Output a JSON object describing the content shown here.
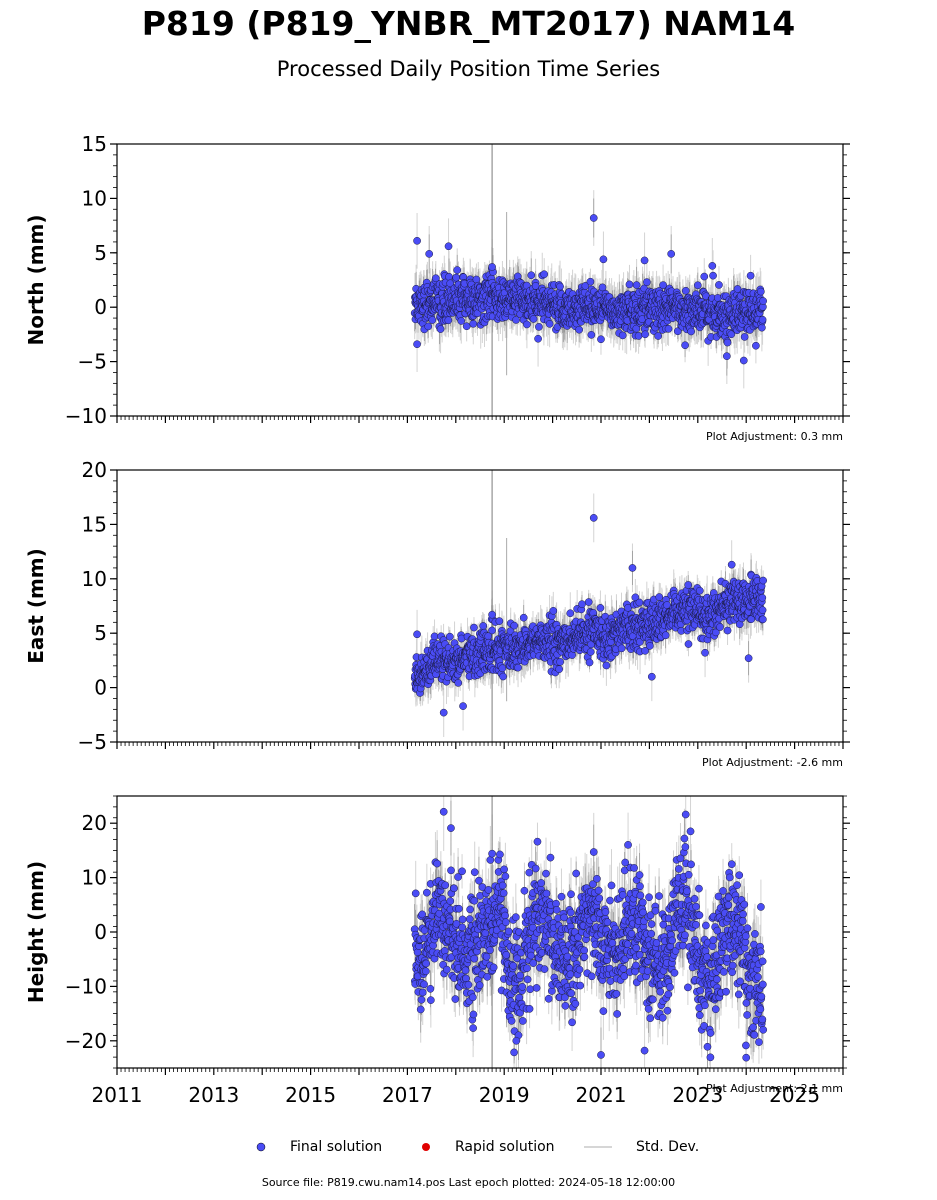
{
  "header": {
    "title": "P819 (P819_YNBR_MT2017) NAM14",
    "subtitle": "Processed Daily Position Time Series"
  },
  "footer": {
    "source": "Source file: P819.cwu.nam14.pos  Last epoch plotted: 2024-05-18 12:00:00"
  },
  "legend": {
    "final_label": "Final solution",
    "rapid_label": "Rapid solution",
    "std_label": "Std. Dev.",
    "final_color": "#4a4cf5",
    "rapid_color": "#e00000",
    "std_color": "#c8c8c8"
  },
  "chart_data": [
    {
      "type": "scatter",
      "ylabel": "North (mm)",
      "adjustment": "Plot Adjustment: 0.3 mm",
      "xlim": [
        2011,
        2026
      ],
      "ylim": [
        -10,
        15
      ],
      "yticks": [
        -10,
        -5,
        0,
        5,
        10,
        15
      ],
      "series": [
        {
          "x": [
            2017.15,
            2017.3,
            2017.5,
            2017.7,
            2017.9,
            2018.1,
            2018.3,
            2018.5,
            2018.7,
            2018.9,
            2019.1,
            2019.3,
            2019.5,
            2019.7,
            2019.9,
            2020.1,
            2020.3,
            2020.5,
            2020.7,
            2020.85,
            2021.0,
            2021.2,
            2021.4,
            2021.6,
            2021.8,
            2022.0,
            2022.2,
            2022.4,
            2022.6,
            2022.8,
            2023.0,
            2023.2,
            2023.4,
            2023.6,
            2023.8,
            2024.0,
            2024.2,
            2024.35
          ],
          "y": [
            0.5,
            0.3,
            0.6,
            0.4,
            0.7,
            0.8,
            0.6,
            0.5,
            0.9,
            0.7,
            0.6,
            0.8,
            0.5,
            0.3,
            0.2,
            0.0,
            -0.2,
            0.0,
            0.1,
            0.3,
            -0.2,
            -0.4,
            -0.1,
            -0.3,
            -0.2,
            0.2,
            -0.4,
            -0.3,
            -0.1,
            -0.2,
            -0.3,
            -0.5,
            -0.4,
            -0.7,
            -0.5,
            -0.6,
            -0.4,
            -0.3
          ],
          "outliers": [
            [
              2017.2,
              6.1
            ],
            [
              2017.45,
              4.9
            ],
            [
              2017.85,
              5.6
            ],
            [
              2018.75,
              3.7
            ],
            [
              2020.85,
              8.2
            ],
            [
              2021.05,
              4.4
            ],
            [
              2021.9,
              4.3
            ],
            [
              2022.45,
              4.9
            ],
            [
              2023.3,
              3.8
            ],
            [
              2023.95,
              -4.9
            ],
            [
              2023.6,
              -4.5
            ],
            [
              2017.2,
              -3.4
            ],
            [
              2019.7,
              -2.9
            ]
          ]
        }
      ]
    },
    {
      "type": "scatter",
      "ylabel": "East (mm)",
      "adjustment": "Plot Adjustment: -2.6 mm",
      "xlim": [
        2011,
        2026
      ],
      "ylim": [
        -5,
        20
      ],
      "yticks": [
        -5,
        0,
        5,
        10,
        15,
        20
      ],
      "series": [
        {
          "x": [
            2017.15,
            2017.3,
            2017.5,
            2017.7,
            2017.9,
            2018.1,
            2018.3,
            2018.5,
            2018.7,
            2018.9,
            2019.1,
            2019.3,
            2019.5,
            2019.7,
            2019.9,
            2020.1,
            2020.3,
            2020.5,
            2020.7,
            2020.85,
            2021.0,
            2021.2,
            2021.4,
            2021.6,
            2021.8,
            2022.0,
            2022.2,
            2022.4,
            2022.6,
            2022.8,
            2023.0,
            2023.2,
            2023.4,
            2023.6,
            2023.8,
            2024.0,
            2024.2,
            2024.35
          ],
          "y": [
            1.0,
            1.5,
            1.9,
            2.2,
            2.4,
            2.6,
            2.9,
            3.2,
            3.4,
            3.6,
            3.5,
            3.7,
            4.0,
            4.3,
            4.2,
            4.0,
            4.3,
            4.6,
            4.9,
            5.1,
            4.8,
            4.9,
            5.4,
            5.7,
            5.9,
            5.8,
            6.0,
            6.3,
            6.8,
            7.1,
            6.9,
            6.6,
            7.2,
            7.6,
            7.9,
            8.2,
            8.0,
            7.8
          ],
          "outliers": [
            [
              2020.85,
              15.6
            ],
            [
              2021.65,
              11.0
            ],
            [
              2023.7,
              11.3
            ],
            [
              2017.2,
              4.9
            ],
            [
              2018.75,
              6.7
            ],
            [
              2017.75,
              -2.3
            ],
            [
              2018.15,
              -1.7
            ],
            [
              2024.05,
              2.7
            ],
            [
              2023.15,
              3.2
            ],
            [
              2022.05,
              1.0
            ]
          ]
        }
      ]
    },
    {
      "type": "scatter",
      "ylabel": "Height (mm)",
      "adjustment": "Plot Adjustment: 2.1 mm",
      "xlim": [
        2011,
        2026
      ],
      "ylim": [
        -25,
        25
      ],
      "yticks": [
        -20,
        -10,
        0,
        10,
        20
      ],
      "xticks": [
        "2011",
        "2013",
        "2015",
        "2017",
        "2019",
        "2021",
        "2023",
        "2025"
      ],
      "series": [
        {
          "x": [
            2017.15,
            2017.3,
            2017.5,
            2017.7,
            2017.9,
            2018.1,
            2018.3,
            2018.5,
            2018.7,
            2018.9,
            2019.1,
            2019.3,
            2019.5,
            2019.7,
            2019.9,
            2020.1,
            2020.3,
            2020.5,
            2020.7,
            2020.85,
            2021.0,
            2021.2,
            2021.4,
            2021.6,
            2021.8,
            2022.0,
            2022.2,
            2022.4,
            2022.6,
            2022.8,
            2023.0,
            2023.2,
            2023.4,
            2023.6,
            2023.8,
            2024.0,
            2024.2,
            2024.35
          ],
          "y": [
            -4,
            -6,
            2,
            4,
            0,
            -2,
            -5,
            -3,
            2,
            3,
            -6,
            -9,
            -2,
            3,
            1,
            -3,
            -7,
            -1,
            4,
            2,
            -1,
            -4,
            -2,
            3,
            1,
            -5,
            -8,
            -3,
            5,
            3,
            -4,
            -10,
            -5,
            2,
            0,
            -6,
            -9,
            -12
          ],
          "outliers": [
            [
              2017.75,
              22.1
            ],
            [
              2017.9,
              19.1
            ],
            [
              2022.75,
              21.6
            ],
            [
              2022.85,
              18.5
            ],
            [
              2021.0,
              -22.6
            ],
            [
              2021.9,
              -21.8
            ],
            [
              2024.0,
              -23.1
            ],
            [
              2023.2,
              -21.1
            ],
            [
              2019.25,
              -20.0
            ],
            [
              2018.75,
              14.4
            ],
            [
              2020.85,
              14.7
            ]
          ]
        }
      ]
    }
  ]
}
